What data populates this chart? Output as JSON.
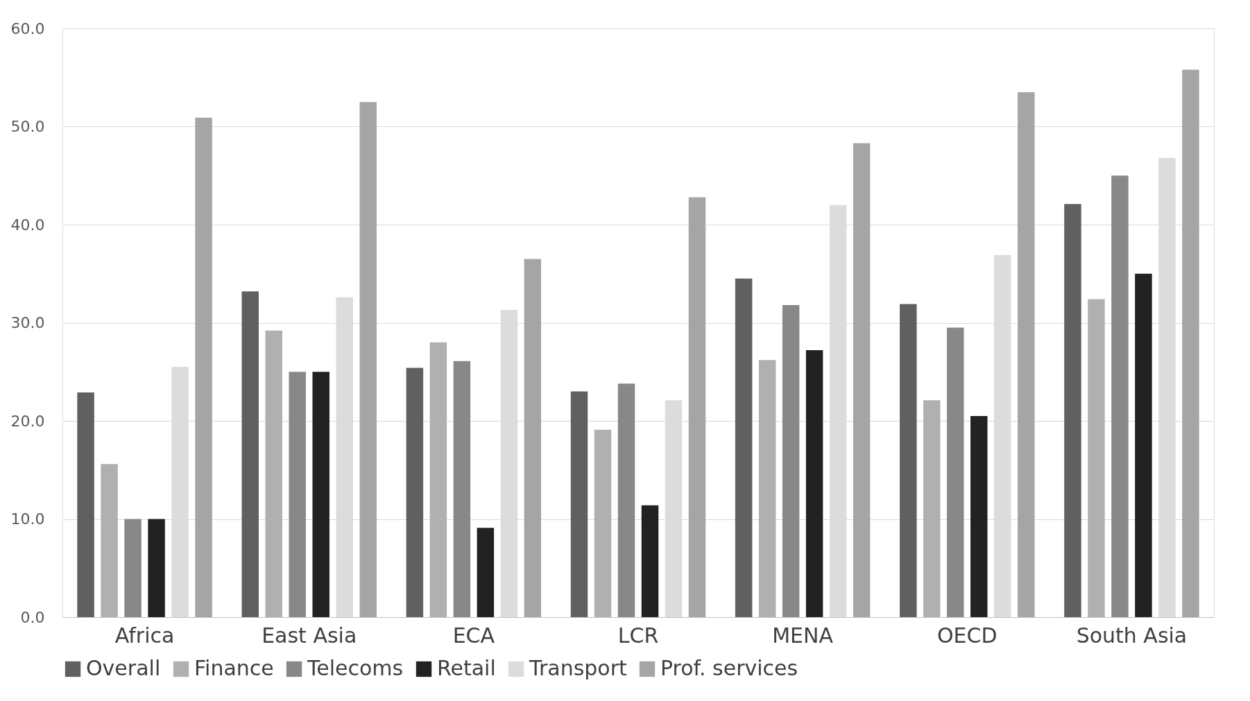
{
  "chart_data": {
    "type": "bar",
    "categories": [
      "Africa",
      "East Asia",
      "ECA",
      "LCR",
      "MENA",
      "OECD",
      "South Asia"
    ],
    "series": [
      {
        "name": "Overall",
        "color": "#606060",
        "values": [
          22.9,
          33.2,
          25.4,
          23.0,
          34.5,
          31.9,
          42.1
        ]
      },
      {
        "name": "Finance",
        "color": "#b0b0b0",
        "values": [
          15.6,
          29.2,
          28.0,
          19.1,
          26.2,
          22.1,
          32.4
        ]
      },
      {
        "name": "Telecoms",
        "color": "#888888",
        "values": [
          10.0,
          25.0,
          26.1,
          23.8,
          31.8,
          29.5,
          45.0
        ]
      },
      {
        "name": "Retail",
        "color": "#222222",
        "values": [
          10.0,
          25.0,
          9.1,
          11.4,
          27.2,
          20.5,
          35.0
        ]
      },
      {
        "name": "Transport",
        "color": "#dcdcdc",
        "values": [
          25.5,
          32.6,
          31.3,
          22.1,
          42.0,
          36.9,
          46.8
        ]
      },
      {
        "name": "Prof. services",
        "color": "#a5a5a5",
        "values": [
          50.9,
          52.5,
          36.5,
          42.8,
          48.3,
          53.5,
          55.8
        ]
      }
    ],
    "ylim": [
      0,
      60
    ],
    "yticks": [
      {
        "value": 0,
        "label": "0.0"
      },
      {
        "value": 10,
        "label": "10.0"
      },
      {
        "value": 20,
        "label": "20.0"
      },
      {
        "value": 30,
        "label": "30.0"
      },
      {
        "value": 40,
        "label": "40.0"
      },
      {
        "value": 50,
        "label": "50.0"
      },
      {
        "value": 60,
        "label": "60.0"
      }
    ],
    "grid": "y",
    "legend": "bottom"
  }
}
